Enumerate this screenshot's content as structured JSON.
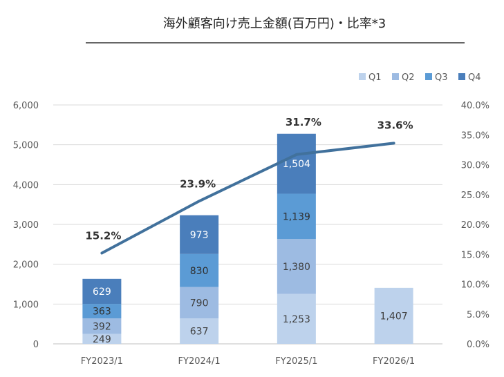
{
  "chart_data": {
    "type": "bar",
    "title": "海外顧客向け売上金額(百万円)・比率*3",
    "categories": [
      "FY2023/1",
      "FY2024/1",
      "FY2025/1",
      "FY2026/1"
    ],
    "series": [
      {
        "name": "Q1",
        "values": [
          249,
          637,
          1253,
          1407
        ],
        "color": "#bdd2ec",
        "label_color": "#404040"
      },
      {
        "name": "Q2",
        "values": [
          392,
          790,
          1380,
          null
        ],
        "color": "#9dbbe2",
        "label_color": "#404040"
      },
      {
        "name": "Q3",
        "values": [
          363,
          830,
          1139,
          null
        ],
        "color": "#5b9bd5",
        "label_color": "#2f2f2f"
      },
      {
        "name": "Q4",
        "values": [
          629,
          973,
          1504,
          null
        ],
        "color": "#4a7ebb",
        "label_color": "#ffffff"
      }
    ],
    "line": {
      "values": [
        15.2,
        23.9,
        31.7,
        33.6
      ],
      "labels": [
        "15.2%",
        "23.9%",
        "31.7%",
        "33.6%"
      ],
      "color": "#41719c"
    },
    "ylim": [
      0,
      6000
    ],
    "yticks": [
      "0",
      "1,000",
      "2,000",
      "3,000",
      "4,000",
      "5,000",
      "6,000"
    ],
    "y2lim": [
      0,
      40
    ],
    "y2ticks": [
      "0.0%",
      "5.0%",
      "10.0%",
      "15.0%",
      "20.0%",
      "25.0%",
      "30.0%",
      "35.0%",
      "40.0%"
    ],
    "grid": true,
    "legend_position": "top-right"
  }
}
